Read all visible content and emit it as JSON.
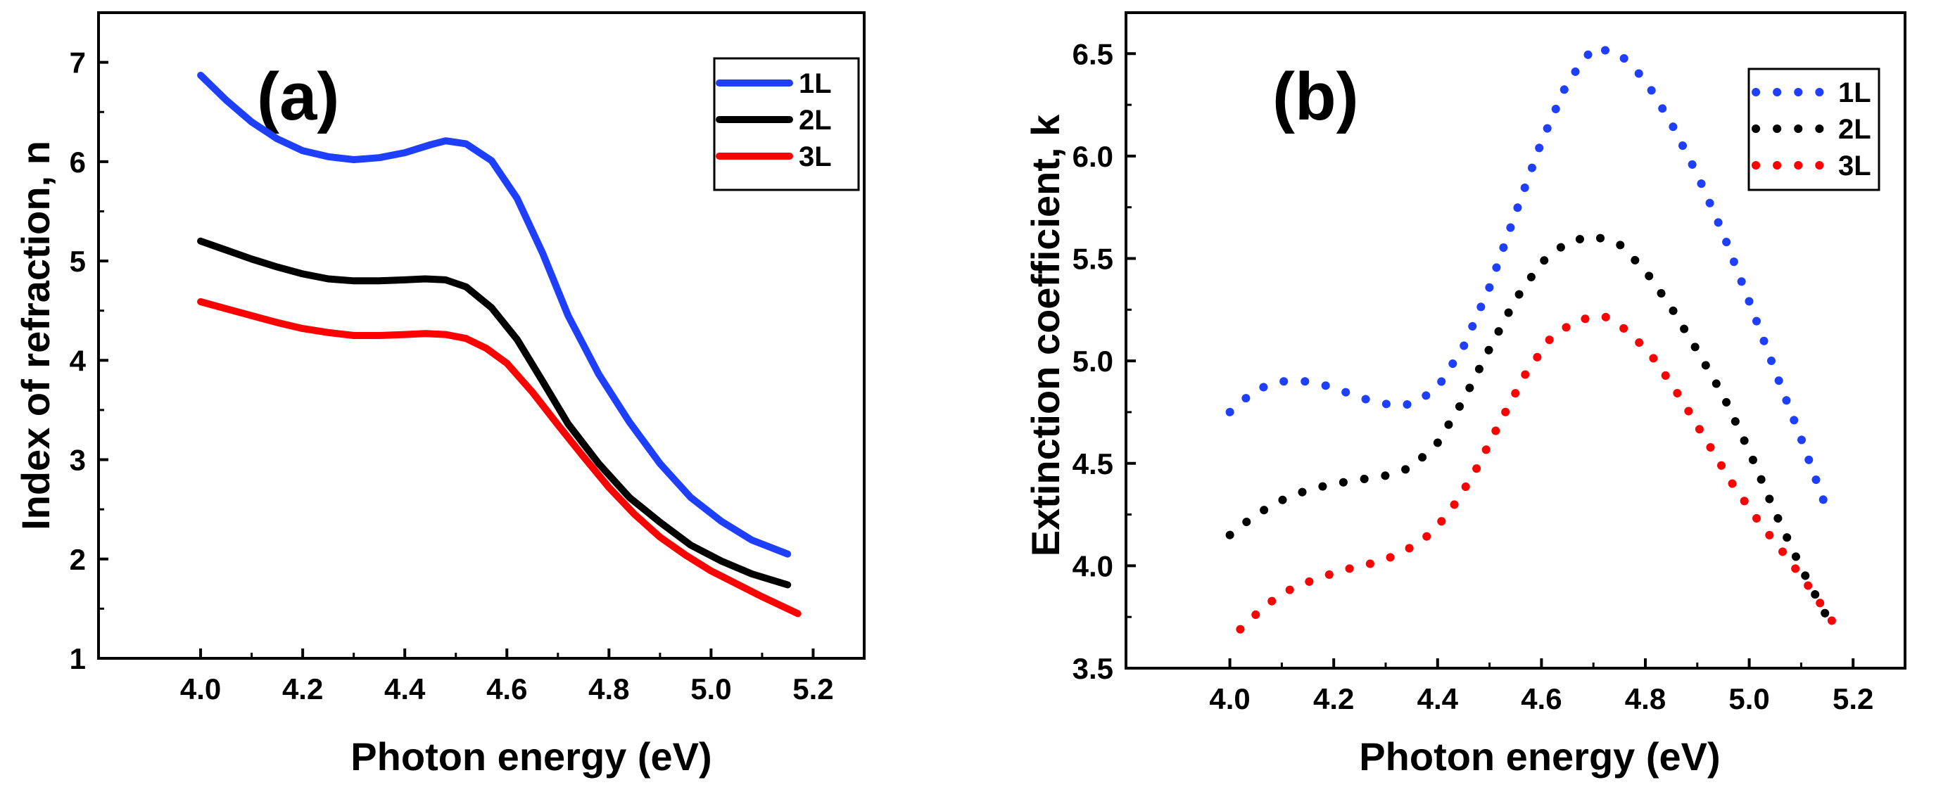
{
  "chart_data": [
    {
      "type": "line",
      "panel_label": "(a)",
      "xlabel": "Photon energy (eV)",
      "ylabel": "Index of refraction, n",
      "xlim": [
        3.8,
        5.3
      ],
      "ylim": [
        1,
        7.5
      ],
      "xticks": [
        4.0,
        4.2,
        4.4,
        4.6,
        4.8,
        5.0,
        5.2
      ],
      "xtick_labels": [
        "4.0",
        "4.2",
        "4.4",
        "4.6",
        "4.8",
        "5.0",
        "5.2"
      ],
      "yticks": [
        1,
        2,
        3,
        4,
        5,
        6,
        7
      ],
      "ytick_labels": [
        "1",
        "2",
        "3",
        "4",
        "5",
        "6",
        "7"
      ],
      "line_style": "solid",
      "legend_position": "top-right",
      "series": [
        {
          "name": "1L",
          "color": "#1f3fff",
          "x": [
            4.0,
            4.05,
            4.1,
            4.15,
            4.2,
            4.25,
            4.3,
            4.35,
            4.4,
            4.45,
            4.48,
            4.52,
            4.57,
            4.62,
            4.67,
            4.72,
            4.78,
            4.84,
            4.9,
            4.96,
            5.02,
            5.08,
            5.15
          ],
          "y": [
            6.87,
            6.62,
            6.4,
            6.23,
            6.11,
            6.05,
            6.02,
            6.04,
            6.09,
            6.17,
            6.21,
            6.18,
            6.01,
            5.63,
            5.08,
            4.45,
            3.86,
            3.38,
            2.96,
            2.62,
            2.38,
            2.19,
            2.05
          ]
        },
        {
          "name": "2L",
          "color": "#000000",
          "x": [
            4.0,
            4.05,
            4.1,
            4.15,
            4.2,
            4.25,
            4.3,
            4.35,
            4.4,
            4.44,
            4.48,
            4.52,
            4.57,
            4.62,
            4.67,
            4.72,
            4.78,
            4.84,
            4.9,
            4.96,
            5.02,
            5.08,
            5.15
          ],
          "y": [
            5.2,
            5.11,
            5.02,
            4.94,
            4.87,
            4.82,
            4.8,
            4.8,
            4.81,
            4.82,
            4.81,
            4.74,
            4.53,
            4.21,
            3.79,
            3.36,
            2.96,
            2.62,
            2.37,
            2.14,
            1.98,
            1.85,
            1.74
          ]
        },
        {
          "name": "3L",
          "color": "#ff0000",
          "x": [
            4.0,
            4.05,
            4.1,
            4.15,
            4.2,
            4.25,
            4.3,
            4.35,
            4.4,
            4.44,
            4.48,
            4.52,
            4.56,
            4.6,
            4.65,
            4.7,
            4.75,
            4.8,
            4.85,
            4.9,
            4.95,
            5.0,
            5.05,
            5.1,
            5.17
          ],
          "y": [
            4.59,
            4.52,
            4.45,
            4.38,
            4.32,
            4.28,
            4.25,
            4.25,
            4.26,
            4.27,
            4.26,
            4.22,
            4.12,
            3.97,
            3.68,
            3.35,
            3.03,
            2.72,
            2.45,
            2.22,
            2.04,
            1.88,
            1.75,
            1.62,
            1.45
          ]
        }
      ]
    },
    {
      "type": "line",
      "panel_label": "(b)",
      "xlabel": "Photon energy (eV)",
      "ylabel": "Extinction coefficient, k",
      "xlim": [
        3.8,
        5.3
      ],
      "ylim": [
        3.5,
        6.7
      ],
      "xticks": [
        4.0,
        4.2,
        4.4,
        4.6,
        4.8,
        5.0,
        5.2
      ],
      "xtick_labels": [
        "4.0",
        "4.2",
        "4.4",
        "4.6",
        "4.8",
        "5.0",
        "5.2"
      ],
      "yticks": [
        3.5,
        4.0,
        4.5,
        5.0,
        5.5,
        6.0,
        6.5
      ],
      "ytick_labels": [
        "3.5",
        "4.0",
        "4.5",
        "5.0",
        "5.5",
        "6.0",
        "6.5"
      ],
      "line_style": "dotted",
      "legend_position": "top-right",
      "series": [
        {
          "name": "1L",
          "color": "#1f3fff",
          "x": [
            4.0,
            4.05,
            4.1,
            4.15,
            4.2,
            4.25,
            4.3,
            4.33,
            4.36,
            4.4,
            4.45,
            4.5,
            4.55,
            4.6,
            4.65,
            4.7,
            4.75,
            4.8,
            4.85,
            4.9,
            4.95,
            5.0,
            5.05,
            5.1,
            5.15
          ],
          "y": [
            4.75,
            4.86,
            4.9,
            4.9,
            4.87,
            4.82,
            4.79,
            4.78,
            4.8,
            4.87,
            5.07,
            5.36,
            5.72,
            6.07,
            6.36,
            6.53,
            6.5,
            6.37,
            6.16,
            5.91,
            5.62,
            5.29,
            4.95,
            4.62,
            4.27
          ]
        },
        {
          "name": "2L",
          "color": "#000000",
          "x": [
            4.0,
            4.05,
            4.1,
            4.15,
            4.2,
            4.25,
            4.3,
            4.35,
            4.4,
            4.45,
            4.5,
            4.55,
            4.6,
            4.65,
            4.7,
            4.75,
            4.8,
            4.85,
            4.9,
            4.95,
            5.0,
            5.05,
            5.1,
            5.16
          ],
          "y": [
            4.15,
            4.25,
            4.32,
            4.37,
            4.4,
            4.42,
            4.44,
            4.48,
            4.6,
            4.81,
            5.06,
            5.3,
            5.48,
            5.58,
            5.61,
            5.57,
            5.44,
            5.26,
            5.05,
            4.83,
            4.56,
            4.26,
            3.99,
            3.7
          ]
        },
        {
          "name": "3L",
          "color": "#ff0000",
          "x": [
            4.02,
            4.07,
            4.12,
            4.17,
            4.22,
            4.27,
            4.32,
            4.37,
            4.42,
            4.47,
            4.52,
            4.57,
            4.62,
            4.67,
            4.72,
            4.77,
            4.82,
            4.87,
            4.92,
            4.97,
            5.02,
            5.07,
            5.12,
            5.17
          ],
          "y": [
            3.69,
            3.81,
            3.89,
            3.94,
            3.98,
            4.01,
            4.05,
            4.12,
            4.25,
            4.45,
            4.7,
            4.94,
            5.12,
            5.2,
            5.22,
            5.14,
            5.0,
            4.81,
            4.6,
            4.39,
            4.21,
            4.05,
            3.88,
            3.69
          ]
        }
      ]
    }
  ]
}
